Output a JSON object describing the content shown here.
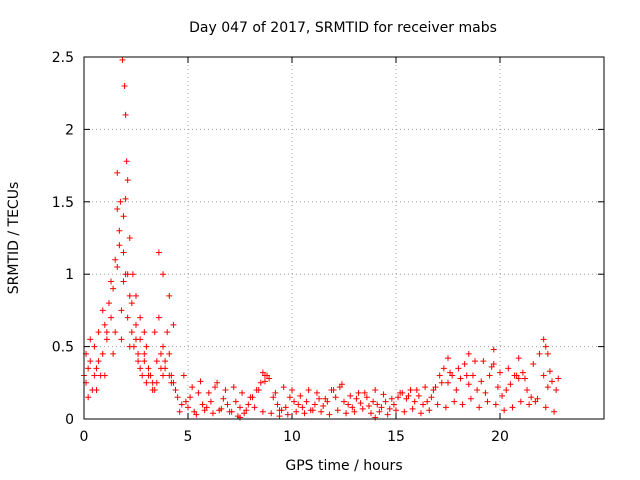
{
  "chart_data": {
    "type": "scatter",
    "title": "Day 047 of 2017, SRMTID for receiver mabs",
    "xlabel": "GPS time / hours",
    "ylabel": "SRMTID / TECUs",
    "xlim": [
      0,
      25
    ],
    "ylim": [
      0,
      2.5
    ],
    "x_ticks": [
      0,
      5,
      10,
      15,
      20
    ],
    "x_tick_labels": [
      "0",
      "5",
      "10",
      "15",
      "20"
    ],
    "y_ticks": [
      0,
      0.5,
      1,
      1.5,
      2,
      2.5
    ],
    "y_tick_labels": [
      "0",
      "0.5",
      "1",
      "1.5",
      "2",
      "2.5"
    ],
    "grid": true,
    "marker": "+",
    "color": "#ff0000",
    "series": [
      {
        "name": "SRMTID",
        "x": [
          0.0,
          0.1,
          0.2,
          0.3,
          0.4,
          0.5,
          0.6,
          0.7,
          0.8,
          0.9,
          1.0,
          1.1,
          1.2,
          1.3,
          1.4,
          1.5,
          1.6,
          1.7,
          1.8,
          1.9,
          2.0,
          2.1,
          2.2,
          2.3,
          2.4,
          2.5,
          2.6,
          2.7,
          2.8,
          2.9,
          3.0,
          3.1,
          3.2,
          3.3,
          3.4,
          3.5,
          3.6,
          3.7,
          3.8,
          3.9,
          4.0,
          4.1,
          4.2,
          4.3,
          4.4,
          0.1,
          0.3,
          0.5,
          0.7,
          0.9,
          1.1,
          1.3,
          1.5,
          1.7,
          1.9,
          2.1,
          2.3,
          2.5,
          2.7,
          2.9,
          3.1,
          3.3,
          3.5,
          3.7,
          3.9,
          4.1,
          0.2,
          0.6,
          1.0,
          1.4,
          1.8,
          2.2,
          2.6,
          3.0,
          3.4,
          3.8,
          4.2,
          1.6,
          1.85,
          1.95,
          2.0,
          2.05,
          2.1,
          2.0,
          1.9,
          1.75,
          1.6,
          2.2,
          2.35,
          2.5,
          2.7,
          2.9,
          3.6,
          3.8,
          4.1,
          4.3,
          4.5,
          4.7,
          4.9,
          5.1,
          5.3,
          5.5,
          5.7,
          5.9,
          6.1,
          6.3,
          6.5,
          6.7,
          6.9,
          7.1,
          7.3,
          7.5,
          7.7,
          7.9,
          8.1,
          8.3,
          8.5,
          8.7,
          8.9,
          9.1,
          9.3,
          9.5,
          9.7,
          9.9,
          10.1,
          10.3,
          10.5,
          10.7,
          10.9,
          11.1,
          11.3,
          11.5,
          11.7,
          11.9,
          12.1,
          12.3,
          12.5,
          12.7,
          12.9,
          13.1,
          13.3,
          13.5,
          13.7,
          13.9,
          14.1,
          14.3,
          14.5,
          14.7,
          14.9,
          15.1,
          15.3,
          15.5,
          15.7,
          15.9,
          16.1,
          16.3,
          16.5,
          16.7,
          16.9,
          17.1,
          17.3,
          17.5,
          17.7,
          17.9,
          18.1,
          18.3,
          18.5,
          18.7,
          18.9,
          19.1,
          19.3,
          19.5,
          19.7,
          19.9,
          20.1,
          20.3,
          20.5,
          20.7,
          20.9,
          21.1,
          21.3,
          21.5,
          21.7,
          21.9,
          22.1,
          22.3,
          22.5,
          22.7,
          4.6,
          5.0,
          5.4,
          5.8,
          6.2,
          6.6,
          7.0,
          7.4,
          7.8,
          8.2,
          8.6,
          9.0,
          9.4,
          9.8,
          10.2,
          10.6,
          11.0,
          11.4,
          11.8,
          12.2,
          12.6,
          13.0,
          13.4,
          13.8,
          14.2,
          14.6,
          15.0,
          15.4,
          15.8,
          16.2,
          16.6,
          17.0,
          17.4,
          17.8,
          18.2,
          18.6,
          19.0,
          19.4,
          19.8,
          20.2,
          20.6,
          21.0,
          21.4,
          21.8,
          22.2,
          22.6,
          8.6,
          8.8,
          8.7,
          12.4,
          17.5,
          18.5,
          19.2,
          19.7,
          20.9,
          21.6,
          22.1,
          22.2,
          22.3,
          22.8,
          4.8,
          5.2,
          5.6,
          6.0,
          6.4,
          6.8,
          7.2,
          7.6,
          8.0,
          8.4,
          9.2,
          9.6,
          10.0,
          10.4,
          10.8,
          11.2,
          11.6,
          12.0,
          12.8,
          13.2,
          13.6,
          14.0,
          14.4,
          14.8,
          15.2,
          15.6,
          16.0,
          16.4,
          16.8,
          17.2,
          17.6,
          18.0,
          18.4,
          18.8,
          19.6,
          20.0,
          20.4,
          20.8,
          21.2,
          22.4,
          9.4,
          7.5,
          14.0
        ],
        "y": [
          0.3,
          0.25,
          0.35,
          0.4,
          0.2,
          0.5,
          0.35,
          0.6,
          0.3,
          0.45,
          0.65,
          0.55,
          0.8,
          0.7,
          0.9,
          0.6,
          1.05,
          1.2,
          0.75,
          0.95,
          1.0,
          0.7,
          0.85,
          0.6,
          0.5,
          0.55,
          0.45,
          0.35,
          0.3,
          0.4,
          0.5,
          0.35,
          0.3,
          0.25,
          0.6,
          0.4,
          0.7,
          0.45,
          0.5,
          0.35,
          0.6,
          0.45,
          0.3,
          0.25,
          0.2,
          0.45,
          0.55,
          0.3,
          0.4,
          0.75,
          0.6,
          0.95,
          1.1,
          1.3,
          1.15,
          1.0,
          0.8,
          0.65,
          0.55,
          0.45,
          0.3,
          0.2,
          0.25,
          0.35,
          0.4,
          0.3,
          0.15,
          0.2,
          0.3,
          0.45,
          0.55,
          0.5,
          0.4,
          0.25,
          0.2,
          0.3,
          0.25,
          1.7,
          2.48,
          2.3,
          2.1,
          1.78,
          1.65,
          1.52,
          1.4,
          1.5,
          1.45,
          1.25,
          1.0,
          0.85,
          0.7,
          0.6,
          1.15,
          1.0,
          0.85,
          0.65,
          0.15,
          0.1,
          0.12,
          0.15,
          0.05,
          0.18,
          0.1,
          0.08,
          0.12,
          0.22,
          0.06,
          0.14,
          0.1,
          0.05,
          0.12,
          0.08,
          0.04,
          0.1,
          0.15,
          0.2,
          0.25,
          0.3,
          0.28,
          0.15,
          0.1,
          0.06,
          0.08,
          0.15,
          0.12,
          0.1,
          0.08,
          0.12,
          0.06,
          0.1,
          0.14,
          0.09,
          0.12,
          0.2,
          0.15,
          0.22,
          0.12,
          0.1,
          0.08,
          0.14,
          0.11,
          0.18,
          0.09,
          0.12,
          0.1,
          0.08,
          0.12,
          0.07,
          0.1,
          0.15,
          0.18,
          0.14,
          0.2,
          0.12,
          0.16,
          0.1,
          0.12,
          0.15,
          0.22,
          0.3,
          0.35,
          0.25,
          0.3,
          0.2,
          0.28,
          0.38,
          0.24,
          0.3,
          0.2,
          0.26,
          0.18,
          0.3,
          0.38,
          0.22,
          0.16,
          0.2,
          0.24,
          0.3,
          0.28,
          0.32,
          0.2,
          0.15,
          0.12,
          0.45,
          0.3,
          0.22,
          0.26,
          0.2,
          0.05,
          0.08,
          0.03,
          0.06,
          0.04,
          0.07,
          0.05,
          0.02,
          0.06,
          0.08,
          0.05,
          0.04,
          0.06,
          0.03,
          0.05,
          0.04,
          0.06,
          0.05,
          0.03,
          0.06,
          0.04,
          0.05,
          0.07,
          0.04,
          0.05,
          0.03,
          0.06,
          0.05,
          0.07,
          0.04,
          0.06,
          0.1,
          0.08,
          0.12,
          0.1,
          0.14,
          0.08,
          0.12,
          0.1,
          0.06,
          0.08,
          0.12,
          0.1,
          0.14,
          0.08,
          0.05,
          0.32,
          0.3,
          0.26,
          0.24,
          0.42,
          0.45,
          0.4,
          0.48,
          0.42,
          0.38,
          0.55,
          0.5,
          0.45,
          0.28,
          0.3,
          0.22,
          0.26,
          0.18,
          0.25,
          0.2,
          0.22,
          0.18,
          0.15,
          0.2,
          0.18,
          0.22,
          0.2,
          0.16,
          0.2,
          0.18,
          0.14,
          0.2,
          0.16,
          0.18,
          0.15,
          0.2,
          0.17,
          0.14,
          0.18,
          0.16,
          0.2,
          0.22,
          0.2,
          0.25,
          0.32,
          0.35,
          0.3,
          0.4,
          0.36,
          0.32,
          0.35,
          0.3,
          0.28,
          0.33,
          0.02,
          0.01,
          0.01
        ]
      }
    ]
  }
}
